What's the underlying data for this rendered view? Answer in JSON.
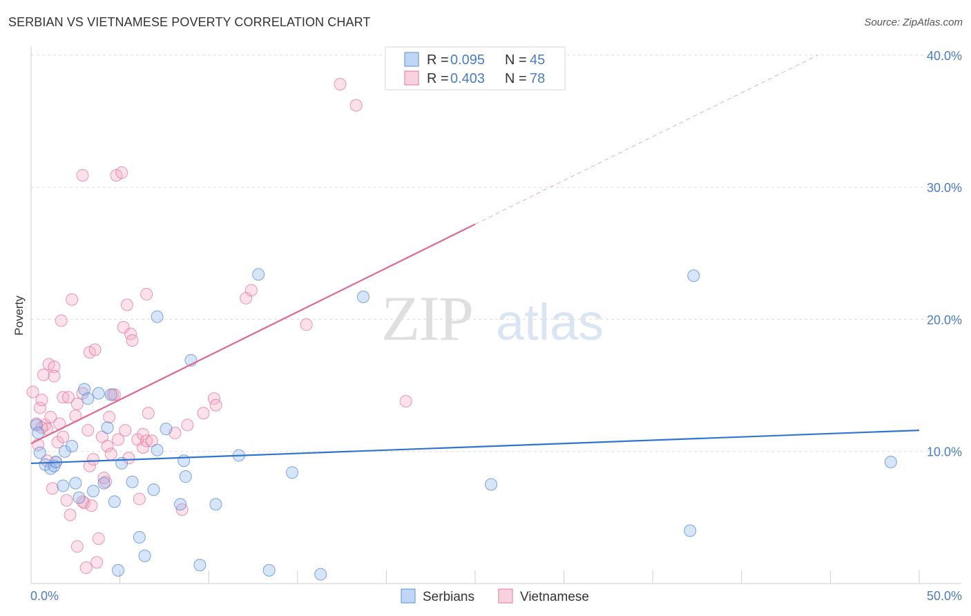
{
  "title": "SERBIAN VS VIETNAMESE POVERTY CORRELATION CHART",
  "source": "Source: ZipAtlas.com",
  "colors": {
    "serbians": "#5b8fd6",
    "serbians_fill": "rgba(139,180,235,0.35)",
    "vietnamese": "#e4739b",
    "vietnamese_fill": "rgba(244,170,195,0.35)",
    "blue_text": "#4a7cc7",
    "grid": "#dddddd"
  },
  "chart_data": {
    "type": "scatter",
    "title": "SERBIAN VS VIETNAMESE POVERTY CORRELATION CHART",
    "xlabel": "",
    "ylabel": "Poverty",
    "xlim": [
      0,
      50
    ],
    "ylim": [
      0,
      40
    ],
    "x_tick_labels": [
      "0.0%",
      "50.0%"
    ],
    "y_ticks": [
      10,
      20,
      30,
      40
    ],
    "y_tick_labels": [
      "10.0%",
      "20.0%",
      "30.0%",
      "40.0%"
    ],
    "grid": true,
    "legend": [
      {
        "name": "Serbians",
        "r_label": "R = ",
        "r": "0.095",
        "n_label": "N = ",
        "n": "45"
      },
      {
        "name": "Vietnamese",
        "r_label": "R = ",
        "r": "0.403",
        "n_label": "N = ",
        "n": "78"
      }
    ],
    "series": [
      {
        "name": "Serbians",
        "trend": {
          "x0": 0,
          "y0": 9.1,
          "x1": 50,
          "y1": 11.6
        },
        "points": [
          [
            0.3,
            12
          ],
          [
            0.5,
            9.9
          ],
          [
            0.8,
            9
          ],
          [
            1.1,
            8.7
          ],
          [
            1.3,
            8.9
          ],
          [
            0.4,
            11.4
          ],
          [
            1.4,
            9.2
          ],
          [
            1.9,
            10
          ],
          [
            2.3,
            10.4
          ],
          [
            1.8,
            7.4
          ],
          [
            2.5,
            7.6
          ],
          [
            2.7,
            6.5
          ],
          [
            3.0,
            14.7
          ],
          [
            3.2,
            14
          ],
          [
            3.5,
            7
          ],
          [
            3.8,
            14.4
          ],
          [
            4.1,
            7.6
          ],
          [
            4.3,
            11.8
          ],
          [
            4.5,
            14.3
          ],
          [
            4.7,
            6.2
          ],
          [
            5.1,
            9.1
          ],
          [
            5.7,
            7.7
          ],
          [
            6.1,
            3.5
          ],
          [
            6.4,
            2.1
          ],
          [
            6.9,
            7.1
          ],
          [
            7.1,
            20.2
          ],
          [
            7.1,
            10.1
          ],
          [
            7.6,
            11.7
          ],
          [
            8.4,
            6
          ],
          [
            8.6,
            9.3
          ],
          [
            8.7,
            8.1
          ],
          [
            9.0,
            16.9
          ],
          [
            9.5,
            1.4
          ],
          [
            10.4,
            6
          ],
          [
            11.7,
            9.7
          ],
          [
            12.8,
            23.4
          ],
          [
            13.4,
            1
          ],
          [
            14.7,
            8.4
          ],
          [
            16.3,
            0.7
          ],
          [
            18.7,
            21.7
          ],
          [
            25.9,
            7.5
          ],
          [
            37.1,
            4
          ],
          [
            37.3,
            23.3
          ],
          [
            48.4,
            9.2
          ],
          [
            4.9,
            1
          ]
        ]
      },
      {
        "name": "Vietnamese",
        "trend": {
          "x0": 0,
          "y0": 10.6,
          "x1": 25,
          "y1": 27.2
        },
        "trend_dashed": {
          "x0": 25,
          "y0": 27.2,
          "x1": 44.3,
          "y1": 40
        },
        "points": [
          [
            0.1,
            14.5
          ],
          [
            0.3,
            12.1
          ],
          [
            0.4,
            10.5
          ],
          [
            0.5,
            13.3
          ],
          [
            0.6,
            13.9
          ],
          [
            0.7,
            15.8
          ],
          [
            0.8,
            12
          ],
          [
            0.9,
            11.7
          ],
          [
            1.0,
            16.6
          ],
          [
            1.1,
            12.6
          ],
          [
            1.3,
            16.4
          ],
          [
            1.3,
            15.7
          ],
          [
            1.4,
            9.2
          ],
          [
            1.5,
            10.7
          ],
          [
            1.6,
            12.1
          ],
          [
            1.7,
            19.9
          ],
          [
            1.8,
            11.1
          ],
          [
            1.8,
            14.1
          ],
          [
            2.1,
            14.1
          ],
          [
            2.2,
            5.2
          ],
          [
            2.3,
            21.5
          ],
          [
            2.5,
            12.7
          ],
          [
            2.6,
            2.8
          ],
          [
            2.6,
            13.6
          ],
          [
            2.9,
            14.4
          ],
          [
            3.0,
            6.1
          ],
          [
            3.2,
            11.6
          ],
          [
            3.3,
            17.5
          ],
          [
            3.3,
            8.9
          ],
          [
            3.4,
            5.9
          ],
          [
            3.5,
            9.4
          ],
          [
            3.6,
            17.7
          ],
          [
            3.7,
            1.6
          ],
          [
            3.8,
            3.4
          ],
          [
            4.0,
            11.1
          ],
          [
            4.2,
            7.7
          ],
          [
            4.3,
            10.4
          ],
          [
            4.4,
            12.6
          ],
          [
            4.5,
            9.8
          ],
          [
            4.6,
            14.3
          ],
          [
            4.7,
            14.3
          ],
          [
            4.8,
            30.9
          ],
          [
            4.9,
            10.9
          ],
          [
            5.1,
            31.1
          ],
          [
            5.2,
            19.4
          ],
          [
            5.3,
            11.6
          ],
          [
            5.4,
            21.1
          ],
          [
            5.5,
            9.5
          ],
          [
            5.6,
            18.9
          ],
          [
            5.7,
            18.4
          ],
          [
            6.0,
            10.9
          ],
          [
            6.1,
            6.4
          ],
          [
            6.3,
            10.3
          ],
          [
            6.3,
            11.3
          ],
          [
            6.5,
            21.9
          ],
          [
            6.5,
            10.8
          ],
          [
            6.6,
            12.9
          ],
          [
            6.8,
            10.8
          ],
          [
            8.1,
            11.4
          ],
          [
            8.5,
            5.6
          ],
          [
            8.8,
            12
          ],
          [
            9.7,
            12.9
          ],
          [
            10.3,
            14
          ],
          [
            10.4,
            13.5
          ],
          [
            12.1,
            21.6
          ],
          [
            12.4,
            22.2
          ],
          [
            15.5,
            19.6
          ],
          [
            17.4,
            37.8
          ],
          [
            18.3,
            36.2
          ],
          [
            21.1,
            13.8
          ],
          [
            2.9,
            30.9
          ],
          [
            3.1,
            1.2
          ],
          [
            1.2,
            7.2
          ],
          [
            0.9,
            9.3
          ],
          [
            2.0,
            6.3
          ],
          [
            0.6,
            11.8
          ],
          [
            2.9,
            6.2
          ],
          [
            4.1,
            8
          ]
        ]
      }
    ]
  }
}
